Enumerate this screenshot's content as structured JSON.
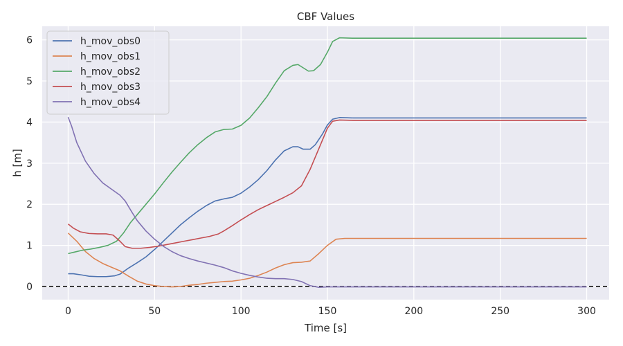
{
  "chart_data": {
    "type": "line",
    "title": "CBF Values",
    "xlabel": "Time [s]",
    "ylabel": "h [m]",
    "xlim": [
      -15,
      313
    ],
    "ylim": [
      -0.32,
      6.33
    ],
    "xticks": [
      0,
      50,
      100,
      150,
      200,
      250,
      300
    ],
    "yticks": [
      0,
      1,
      2,
      3,
      4,
      5,
      6
    ],
    "grid": true,
    "legend_position": "top-left",
    "reference_line": {
      "y": 0,
      "style": "dashed",
      "color": "#000000"
    },
    "series": [
      {
        "name": "h_mov_obs0",
        "color": "#4c72b0",
        "points": [
          [
            0,
            0.31
          ],
          [
            3,
            0.31
          ],
          [
            8,
            0.28
          ],
          [
            12,
            0.25
          ],
          [
            17,
            0.24
          ],
          [
            22,
            0.24
          ],
          [
            27,
            0.26
          ],
          [
            30,
            0.3
          ],
          [
            35,
            0.45
          ],
          [
            40,
            0.58
          ],
          [
            45,
            0.72
          ],
          [
            50,
            0.9
          ],
          [
            55,
            1.1
          ],
          [
            60,
            1.3
          ],
          [
            65,
            1.5
          ],
          [
            70,
            1.67
          ],
          [
            75,
            1.83
          ],
          [
            80,
            1.97
          ],
          [
            85,
            2.08
          ],
          [
            90,
            2.13
          ],
          [
            95,
            2.17
          ],
          [
            100,
            2.27
          ],
          [
            105,
            2.42
          ],
          [
            110,
            2.6
          ],
          [
            115,
            2.82
          ],
          [
            120,
            3.08
          ],
          [
            125,
            3.3
          ],
          [
            130,
            3.4
          ],
          [
            133,
            3.4
          ],
          [
            136,
            3.34
          ],
          [
            140,
            3.34
          ],
          [
            143,
            3.45
          ],
          [
            147,
            3.7
          ],
          [
            150,
            3.93
          ],
          [
            153,
            4.07
          ],
          [
            157,
            4.11
          ],
          [
            165,
            4.1
          ],
          [
            200,
            4.1
          ],
          [
            250,
            4.1
          ],
          [
            300,
            4.1
          ]
        ]
      },
      {
        "name": "h_mov_obs1",
        "color": "#dd8452",
        "points": [
          [
            0,
            1.3
          ],
          [
            5,
            1.1
          ],
          [
            10,
            0.85
          ],
          [
            15,
            0.68
          ],
          [
            20,
            0.56
          ],
          [
            25,
            0.47
          ],
          [
            30,
            0.38
          ],
          [
            35,
            0.25
          ],
          [
            40,
            0.13
          ],
          [
            45,
            0.06
          ],
          [
            50,
            0.02
          ],
          [
            55,
            0.0
          ],
          [
            60,
            -0.01
          ],
          [
            65,
            0.0
          ],
          [
            70,
            0.03
          ],
          [
            75,
            0.05
          ],
          [
            80,
            0.08
          ],
          [
            85,
            0.1
          ],
          [
            90,
            0.12
          ],
          [
            95,
            0.13
          ],
          [
            100,
            0.16
          ],
          [
            105,
            0.2
          ],
          [
            110,
            0.27
          ],
          [
            115,
            0.35
          ],
          [
            120,
            0.45
          ],
          [
            125,
            0.53
          ],
          [
            130,
            0.58
          ],
          [
            135,
            0.59
          ],
          [
            140,
            0.62
          ],
          [
            145,
            0.8
          ],
          [
            150,
            1.0
          ],
          [
            155,
            1.15
          ],
          [
            160,
            1.17
          ],
          [
            170,
            1.17
          ],
          [
            200,
            1.17
          ],
          [
            250,
            1.17
          ],
          [
            300,
            1.17
          ]
        ]
      },
      {
        "name": "h_mov_obs2",
        "color": "#55a868",
        "points": [
          [
            0,
            0.8
          ],
          [
            3,
            0.83
          ],
          [
            8,
            0.88
          ],
          [
            13,
            0.91
          ],
          [
            18,
            0.95
          ],
          [
            23,
            1.0
          ],
          [
            28,
            1.1
          ],
          [
            32,
            1.3
          ],
          [
            36,
            1.55
          ],
          [
            40,
            1.75
          ],
          [
            45,
            2.0
          ],
          [
            50,
            2.25
          ],
          [
            55,
            2.52
          ],
          [
            60,
            2.78
          ],
          [
            65,
            3.02
          ],
          [
            70,
            3.25
          ],
          [
            75,
            3.45
          ],
          [
            80,
            3.62
          ],
          [
            85,
            3.76
          ],
          [
            90,
            3.82
          ],
          [
            95,
            3.83
          ],
          [
            100,
            3.92
          ],
          [
            105,
            4.1
          ],
          [
            110,
            4.35
          ],
          [
            115,
            4.62
          ],
          [
            120,
            4.95
          ],
          [
            125,
            5.25
          ],
          [
            130,
            5.38
          ],
          [
            133,
            5.4
          ],
          [
            136,
            5.32
          ],
          [
            139,
            5.24
          ],
          [
            142,
            5.25
          ],
          [
            146,
            5.4
          ],
          [
            150,
            5.7
          ],
          [
            153,
            5.96
          ],
          [
            157,
            6.05
          ],
          [
            165,
            6.04
          ],
          [
            200,
            6.04
          ],
          [
            250,
            6.04
          ],
          [
            300,
            6.04
          ]
        ]
      },
      {
        "name": "h_mov_obs3",
        "color": "#c44e52",
        "points": [
          [
            0,
            1.52
          ],
          [
            3,
            1.42
          ],
          [
            7,
            1.33
          ],
          [
            12,
            1.29
          ],
          [
            17,
            1.28
          ],
          [
            22,
            1.28
          ],
          [
            26,
            1.25
          ],
          [
            30,
            1.1
          ],
          [
            33,
            0.97
          ],
          [
            37,
            0.93
          ],
          [
            42,
            0.93
          ],
          [
            47,
            0.95
          ],
          [
            52,
            0.98
          ],
          [
            57,
            1.02
          ],
          [
            62,
            1.06
          ],
          [
            67,
            1.1
          ],
          [
            72,
            1.14
          ],
          [
            77,
            1.18
          ],
          [
            82,
            1.22
          ],
          [
            87,
            1.28
          ],
          [
            90,
            1.35
          ],
          [
            95,
            1.48
          ],
          [
            100,
            1.62
          ],
          [
            105,
            1.75
          ],
          [
            110,
            1.87
          ],
          [
            115,
            1.97
          ],
          [
            120,
            2.07
          ],
          [
            125,
            2.17
          ],
          [
            130,
            2.28
          ],
          [
            135,
            2.45
          ],
          [
            140,
            2.85
          ],
          [
            145,
            3.35
          ],
          [
            150,
            3.85
          ],
          [
            153,
            4.02
          ],
          [
            157,
            4.05
          ],
          [
            165,
            4.04
          ],
          [
            200,
            4.04
          ],
          [
            250,
            4.04
          ],
          [
            300,
            4.04
          ]
        ]
      },
      {
        "name": "h_mov_obs4",
        "color": "#8172b3",
        "points": [
          [
            0,
            4.12
          ],
          [
            2,
            3.9
          ],
          [
            5,
            3.5
          ],
          [
            10,
            3.05
          ],
          [
            15,
            2.75
          ],
          [
            20,
            2.52
          ],
          [
            25,
            2.37
          ],
          [
            30,
            2.22
          ],
          [
            33,
            2.08
          ],
          [
            37,
            1.8
          ],
          [
            40,
            1.6
          ],
          [
            45,
            1.35
          ],
          [
            50,
            1.15
          ],
          [
            55,
            0.98
          ],
          [
            60,
            0.85
          ],
          [
            65,
            0.75
          ],
          [
            70,
            0.68
          ],
          [
            75,
            0.62
          ],
          [
            80,
            0.57
          ],
          [
            85,
            0.52
          ],
          [
            90,
            0.46
          ],
          [
            95,
            0.38
          ],
          [
            100,
            0.32
          ],
          [
            105,
            0.27
          ],
          [
            110,
            0.23
          ],
          [
            115,
            0.2
          ],
          [
            120,
            0.19
          ],
          [
            125,
            0.19
          ],
          [
            130,
            0.17
          ],
          [
            135,
            0.12
          ],
          [
            140,
            0.02
          ],
          [
            145,
            -0.02
          ],
          [
            150,
            -0.01
          ],
          [
            155,
            -0.01
          ],
          [
            160,
            -0.01
          ],
          [
            200,
            -0.01
          ],
          [
            250,
            -0.01
          ],
          [
            300,
            -0.01
          ]
        ]
      }
    ]
  }
}
